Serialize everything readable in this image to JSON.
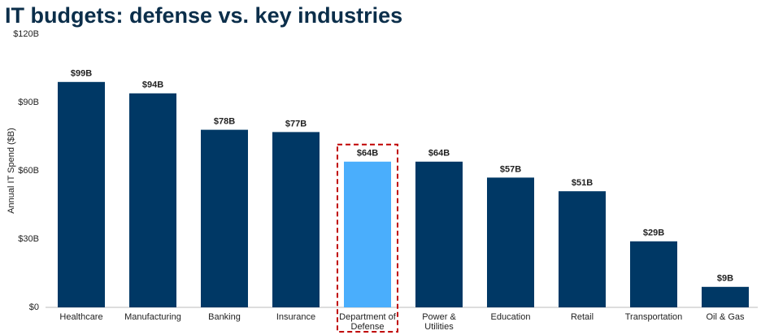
{
  "chart_data": {
    "type": "bar",
    "title": "IT budgets: defense vs. key industries",
    "y_label": "Annual IT Spend ($B)",
    "categories": [
      "Healthcare",
      "Manufacturing",
      "Banking",
      "Insurance",
      "Department of Defense",
      "Power & Utilities",
      "Education",
      "Retail",
      "Transportation",
      "Oil & Gas"
    ],
    "values": [
      99,
      94,
      78,
      77,
      64,
      64,
      57,
      51,
      29,
      9
    ],
    "value_labels": [
      "$99B",
      "$94B",
      "$78B",
      "$77B",
      "$64B",
      "$64B",
      "$57B",
      "$51B",
      "$29B",
      "$9B"
    ],
    "color": "#003865",
    "colors": [
      "#003865",
      "#003865",
      "#003865",
      "#003865",
      "#4aaefc",
      "#003865",
      "#003865",
      "#003865",
      "#003865",
      "#003865"
    ],
    "highlight_box_color": "#c00000",
    "ylim": [
      0,
      120
    ],
    "yticks": [
      {
        "value": 0,
        "label": "$0"
      },
      {
        "value": 30,
        "label": "$30B"
      },
      {
        "value": 60,
        "label": "$60B"
      },
      {
        "value": 90,
        "label": "$90B"
      },
      {
        "value": 120,
        "label": "$120B"
      }
    ],
    "grid": false
  }
}
